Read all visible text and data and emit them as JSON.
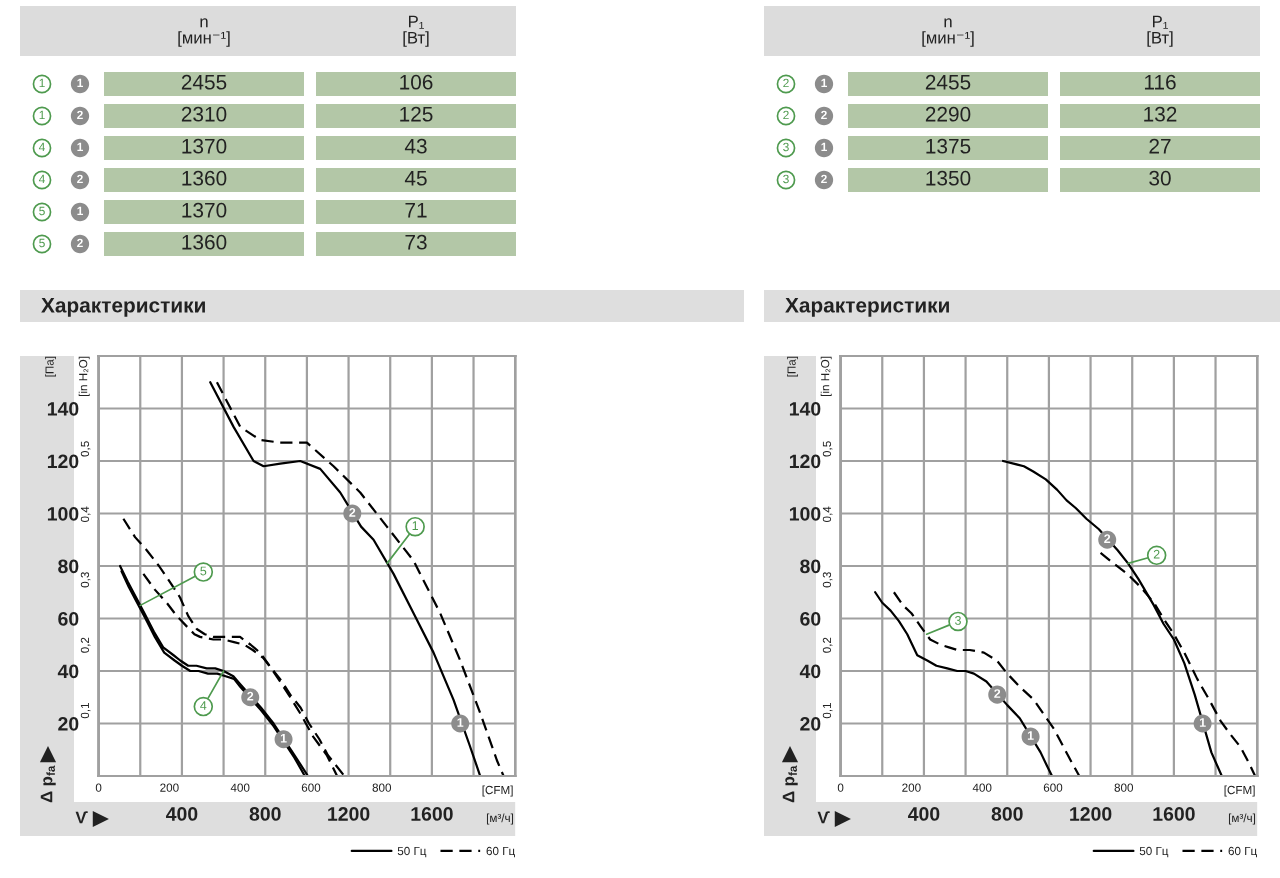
{
  "chart_data": [
    {
      "type": "other",
      "color": "#b3c7a7",
      "categories": [
        "n\n[мин⁻¹]",
        "P₁\n[Вт]"
      ],
      "y_categories": [
        "1",
        "1",
        "4",
        "4",
        "5",
        "5"
      ],
      "y2_categories": [
        "1",
        "2",
        "1",
        "2",
        "1",
        "2"
      ],
      "annotations": [
        "2455",
        "106",
        "2310",
        "125",
        "1370",
        "43",
        "1360",
        "45",
        "1370",
        "71",
        "1360",
        "73"
      ]
    },
    {
      "type": "other",
      "color": "#b3c7a7",
      "categories": [
        "n\n[мин⁻¹]",
        "P₁\n[Вт]"
      ],
      "y_categories": [
        "2",
        "2",
        "3",
        "3"
      ],
      "y2_categories": [
        "1",
        "2",
        "1",
        "2"
      ],
      "annotations": [
        "2455",
        "116",
        "2290",
        "132",
        "1375",
        "27",
        "1350",
        "30"
      ]
    },
    {
      "type": "line",
      "title": "Характеристики",
      "xlabel": "[м³/ч]",
      "x2label": "[CFM]",
      "ylabel": "[Па]",
      "y2label": "[in H₂O]",
      "xlim": [
        0,
        2000
      ],
      "xticks": [
        {
          "value": 200,
          "label": null
        },
        400,
        {
          "value": 600,
          "label": null
        },
        800,
        {
          "value": 1000,
          "label": null
        },
        1200,
        {
          "value": 1400,
          "label": null
        },
        1600,
        {
          "value": 1800,
          "label": null
        }
      ],
      "x2lim": [
        0,
        1177
      ],
      "x2ticks": [
        0,
        200,
        400,
        600,
        800
      ],
      "ylim": [
        0,
        160
      ],
      "yticks": [
        20,
        40,
        60,
        80,
        100,
        120,
        140
      ],
      "y2lim": [
        0,
        0.642
      ],
      "y2ticks": [
        {
          "value": 0.1,
          "label": "0,1"
        },
        {
          "value": 0.2,
          "label": "0,2"
        },
        {
          "value": 0.3,
          "label": "0,3"
        },
        {
          "value": 0.4,
          "label": "0,4"
        },
        {
          "value": 0.5,
          "label": "0,5"
        }
      ],
      "grid": true,
      "legend": "bottom right",
      "series": [
        {
          "name": "50 Гц",
          "type": "line",
          "color": "#000000",
          "line_style": "solid",
          "x": [
            536,
            648,
            744,
            792,
            872,
            968,
            1064,
            1160,
            1260,
            1320,
            1416,
            1512,
            1608,
            1704,
            1780,
            1832
          ],
          "values": [
            150,
            133,
            120,
            118,
            119,
            120,
            117,
            108,
            95,
            90,
            77,
            62,
            47,
            29,
            12,
            0
          ]
        },
        {
          "name": "60 Гц",
          "type": "line",
          "color": "#000000",
          "line_style": "dashed",
          "x": [
            568,
            680,
            776,
            872,
            1000,
            1128,
            1256,
            1384,
            1512,
            1640,
            1736,
            1832,
            1912,
            1944
          ],
          "values": [
            150,
            133,
            128,
            127,
            127,
            118,
            108,
            95,
            82,
            62,
            44,
            24,
            6,
            0
          ]
        },
        {
          "type": "line",
          "color": "#000000",
          "line_style": "solid",
          "x": [
            103,
            140,
            180,
            220,
            265,
            310,
            360,
            392,
            430,
            470,
            519,
            560,
            600,
            647,
            680,
            780,
            840,
            940,
            1005
          ],
          "values": [
            80,
            74,
            68,
            62,
            55,
            49,
            46,
            44,
            42,
            42,
            41,
            41,
            40,
            38,
            35,
            26,
            20,
            8,
            0
          ]
        },
        {
          "name": "50 Гц",
          "type": "line",
          "color": "#000000",
          "line_style": "solid",
          "x": [
            110,
            145,
            185,
            225,
            270,
            315,
            365,
            400,
            440,
            480,
            525,
            570,
            610,
            650,
            680,
            780,
            840,
            940,
            990
          ],
          "values": [
            78,
            72,
            66,
            60,
            53,
            47,
            44,
            42,
            40,
            40,
            39,
            39,
            38,
            37,
            34,
            25,
            19,
            7,
            0
          ]
        },
        {
          "type": "line",
          "color": "#000000",
          "line_style": "dashed",
          "x": [
            215,
            270,
            327,
            375,
            423,
            460,
            487,
            551,
            600,
            650,
            700,
            740,
            790,
            830,
            880,
            920,
            970,
            1010,
            1060,
            1100,
            1140,
            1180
          ],
          "values": [
            77,
            71,
            66,
            61,
            57,
            54,
            53,
            52,
            52,
            51,
            50,
            48,
            45,
            41,
            36,
            31,
            26,
            20,
            14,
            8,
            4,
            0
          ]
        },
        {
          "name": "60 Гц",
          "type": "line",
          "color": "#000000",
          "line_style": "dashed",
          "x": [
            119,
            175,
            231,
            290,
            350,
            391,
            430,
            471,
            510,
            551,
            600,
            679,
            730,
            775,
            820,
            871,
            920,
            967,
            1030,
            1095,
            1145
          ],
          "values": [
            98,
            91,
            86,
            80,
            73,
            68,
            61,
            56,
            54,
            53,
            53,
            53,
            50,
            47,
            42,
            36,
            30,
            24,
            15,
            8,
            0
          ]
        },
        {
          "type": "scatter",
          "color": "#8c8c8c",
          "marker": "circle",
          "x": [
            1218,
            1736,
            728,
            888
          ],
          "values": [
            100,
            20,
            30,
            14
          ]
        }
      ],
      "annotations": [
        "Δ p$_{fa}$",
        "V̇",
        {
          "text": "2",
          "x": 1218,
          "y": 100
        },
        {
          "text": "1",
          "x": 1736,
          "y": 20
        },
        {
          "text": "2",
          "x": 728,
          "y": 30
        },
        {
          "text": "1",
          "x": 888,
          "y": 14
        },
        {
          "text": "1",
          "x": 1385,
          "y": 81
        },
        {
          "text": "5",
          "x": 200,
          "y": 65
        },
        {
          "text": "4",
          "x": 600,
          "y": 40
        }
      ]
    },
    {
      "type": "line",
      "title": "Характеристики",
      "xlabel": "[м³/ч]",
      "x2label": "[CFM]",
      "ylabel": "[Па]",
      "y2label": "[in H₂O]",
      "xlim": [
        0,
        2000
      ],
      "xticks": [
        {
          "value": 200,
          "label": null
        },
        400,
        {
          "value": 600,
          "label": null
        },
        800,
        {
          "value": 1000,
          "label": null
        },
        1200,
        {
          "value": 1400,
          "label": null
        },
        1600,
        {
          "value": 1800,
          "label": null
        }
      ],
      "x2lim": [
        0,
        1177
      ],
      "x2ticks": [
        0,
        200,
        400,
        600,
        800
      ],
      "ylim": [
        0,
        160
      ],
      "yticks": [
        20,
        40,
        60,
        80,
        100,
        120,
        140
      ],
      "y2lim": [
        0,
        0.642
      ],
      "y2ticks": [
        {
          "value": 0.1,
          "label": "0,1"
        },
        {
          "value": 0.2,
          "label": "0,2"
        },
        {
          "value": 0.3,
          "label": "0,3"
        },
        {
          "value": 0.4,
          "label": "0,4"
        },
        {
          "value": 0.5,
          "label": "0,5"
        }
      ],
      "grid": true,
      "legend": "bottom right",
      "series": [
        {
          "name": "50 Гц",
          "type": "line",
          "color": "#000000",
          "line_style": "solid",
          "x": [
            780,
            830,
            880,
            925,
            985,
            1040,
            1085,
            1130,
            1180,
            1240,
            1330,
            1380,
            1430,
            1504,
            1550,
            1600,
            1650,
            1700,
            1780,
            1830
          ],
          "values": [
            120,
            119,
            118,
            116,
            113,
            109,
            105,
            102,
            98,
            94,
            86,
            81,
            75,
            65,
            58,
            52,
            43,
            31,
            9,
            0
          ]
        },
        {
          "name": "60 Гц",
          "type": "line",
          "color": "#000000",
          "line_style": "dashed",
          "x": [
            1248,
            1310,
            1376,
            1440,
            1504,
            1550,
            1600,
            1650,
            1712,
            1770,
            1824,
            1870,
            1920,
            1960,
            1990
          ],
          "values": [
            85,
            81,
            77,
            72,
            66,
            60,
            54,
            47,
            37,
            29,
            21,
            16,
            11,
            5,
            0
          ]
        },
        {
          "name": "50 Гц",
          "type": "line",
          "color": "#000000",
          "line_style": "solid",
          "x": [
            166,
            200,
            240,
            280,
            320,
            368,
            416,
            460,
            512,
            560,
            600,
            640,
            700,
            800,
            860,
            960,
            990,
            1015
          ],
          "values": [
            70,
            66,
            63,
            59,
            54,
            46,
            44,
            42,
            41,
            40,
            40,
            39,
            36,
            27,
            22,
            9,
            4,
            0
          ]
        },
        {
          "name": "60 Гц",
          "type": "line",
          "color": "#000000",
          "line_style": "dashed",
          "x": [
            256,
            300,
            340,
            384,
            430,
            480,
            520,
            560,
            620,
            688,
            750,
            800,
            860,
            928,
            980,
            1024,
            1064,
            1104,
            1146
          ],
          "values": [
            70,
            65,
            62,
            57,
            52,
            50,
            49,
            48,
            48,
            47,
            44,
            39,
            34,
            29,
            23,
            18,
            12,
            6,
            0
          ]
        },
        {
          "type": "scatter",
          "color": "#8c8c8c",
          "marker": "circle",
          "x": [
            1280,
            1738,
            752,
            912
          ],
          "values": [
            90,
            20,
            31,
            15
          ]
        }
      ],
      "annotations": [
        "Δ p$_{fa}$",
        "V̇",
        {
          "text": "2",
          "x": 1280,
          "y": 90
        },
        {
          "text": "1",
          "x": 1738,
          "y": 20
        },
        {
          "text": "2",
          "x": 752,
          "y": 31
        },
        {
          "text": "1",
          "x": 912,
          "y": 15
        },
        {
          "text": "2",
          "x": 1380,
          "y": 81
        },
        {
          "text": "3",
          "x": 413,
          "y": 54
        }
      ]
    }
  ]
}
